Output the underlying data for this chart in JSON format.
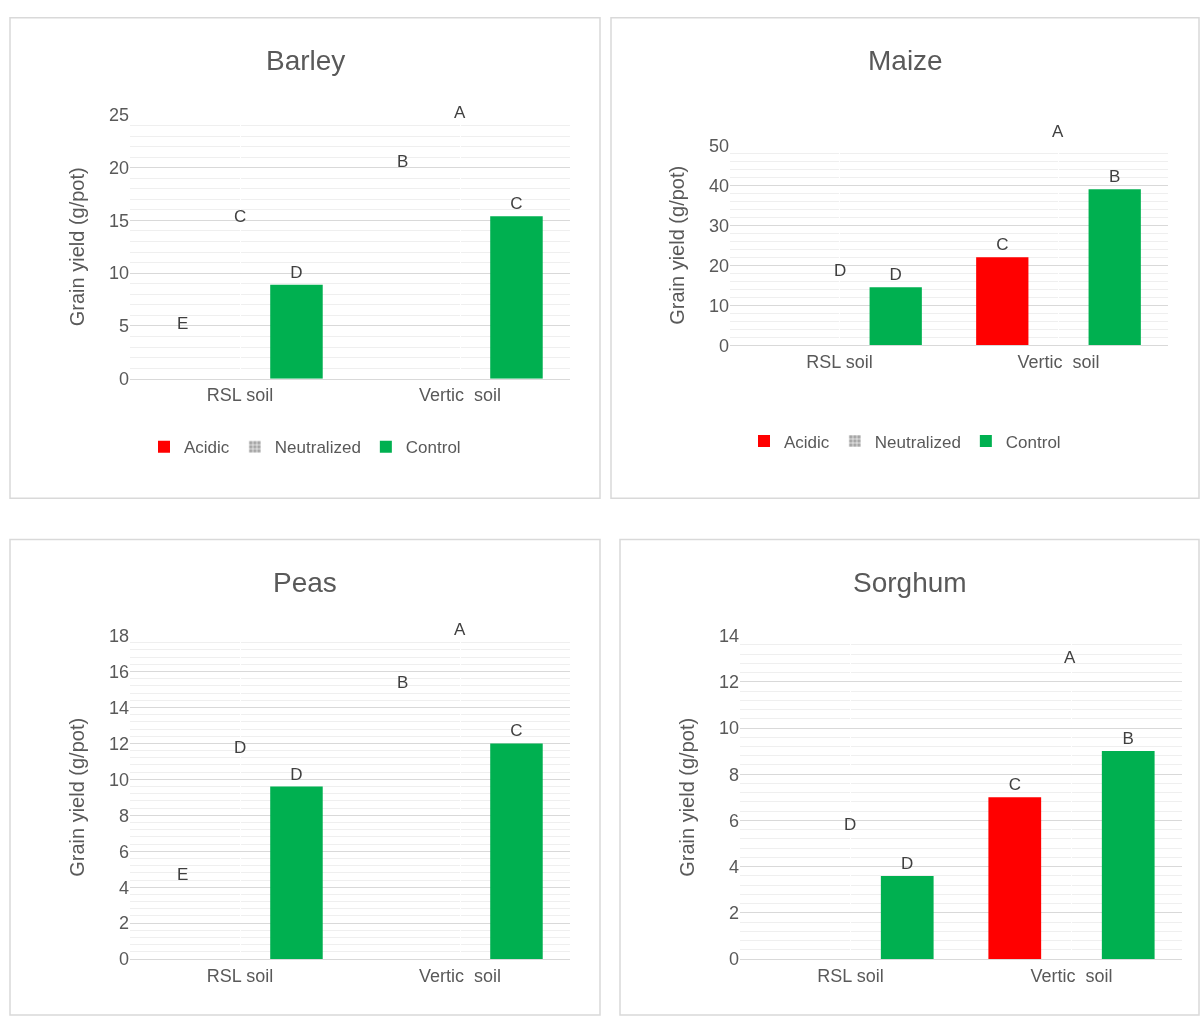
{
  "chart_data": [
    {
      "type": "bar",
      "title": "Barley",
      "ylabel": "Grain yield (g/pot)",
      "categories": [
        "RSL soil",
        "Vertic  soil"
      ],
      "series": [
        {
          "name": "Acidic",
          "color": "#ff0000",
          "values": [
            null,
            null
          ]
        },
        {
          "name": "Neutralized",
          "color": "#a5a5a5",
          "values": [
            null,
            null
          ]
        },
        {
          "name": "Control",
          "color": "#00b050",
          "values": [
            8.9,
            15.4
          ],
          "value_labels": [
            "D",
            "C"
          ]
        }
      ],
      "ylim": [
        0,
        25
      ],
      "yticks": [
        0,
        5,
        10,
        15,
        20,
        25
      ],
      "grid": true,
      "legend": "bottom",
      "annotations": [
        "E",
        "C",
        "B",
        "A"
      ]
    },
    {
      "type": "bar",
      "title": "Maize",
      "ylabel": "Grain yield (g/pot)",
      "categories": [
        "RSL soil",
        "Vertic  soil"
      ],
      "series": [
        {
          "name": "Acidic",
          "color": "#ff0000",
          "values": [
            null,
            22
          ],
          "value_labels": [
            null,
            "C"
          ]
        },
        {
          "name": "Neutralized",
          "color": "#a5a5a5",
          "values": [
            null,
            null
          ]
        },
        {
          "name": "Control",
          "color": "#00b050",
          "values": [
            14.5,
            39
          ],
          "value_labels": [
            "D",
            "B"
          ]
        }
      ],
      "ylim": [
        0,
        50
      ],
      "yticks": [
        0,
        10,
        20,
        30,
        40,
        50
      ],
      "grid": true,
      "legend": "bottom",
      "annotations": [
        "D",
        "A"
      ]
    },
    {
      "type": "bar",
      "title": "Peas",
      "ylabel": "Grain yield (g/pot)",
      "categories": [
        "RSL soil",
        "Vertic  soil"
      ],
      "series": [
        {
          "color": "#ff0000",
          "values": [
            null,
            null
          ]
        },
        {
          "color": "#a5a5a5",
          "values": [
            null,
            null
          ]
        },
        {
          "color": "#00b050",
          "values": [
            9.6,
            12.0
          ],
          "value_labels": [
            "D",
            "C"
          ]
        }
      ],
      "ylim": [
        0,
        18
      ],
      "yticks": [
        0,
        2,
        4,
        6,
        8,
        10,
        12,
        14,
        16,
        18
      ],
      "grid": true,
      "annotations": [
        "E",
        "D",
        "B",
        "A"
      ]
    },
    {
      "type": "bar",
      "title": "Sorghum",
      "ylabel": "Grain yield (g/pot)",
      "categories": [
        "RSL soil",
        "Vertic  soil"
      ],
      "series": [
        {
          "color": "#ff0000",
          "values": [
            null,
            7.0
          ],
          "value_labels": [
            null,
            "C"
          ]
        },
        {
          "color": "#a5a5a5",
          "values": [
            null,
            null
          ]
        },
        {
          "color": "#00b050",
          "values": [
            3.6,
            9.0
          ],
          "value_labels": [
            "D",
            "B"
          ]
        }
      ],
      "ylim": [
        0,
        14
      ],
      "yticks": [
        0,
        2,
        4,
        6,
        8,
        10,
        12,
        14
      ],
      "grid": true,
      "annotations": [
        "D",
        "A"
      ]
    }
  ]
}
